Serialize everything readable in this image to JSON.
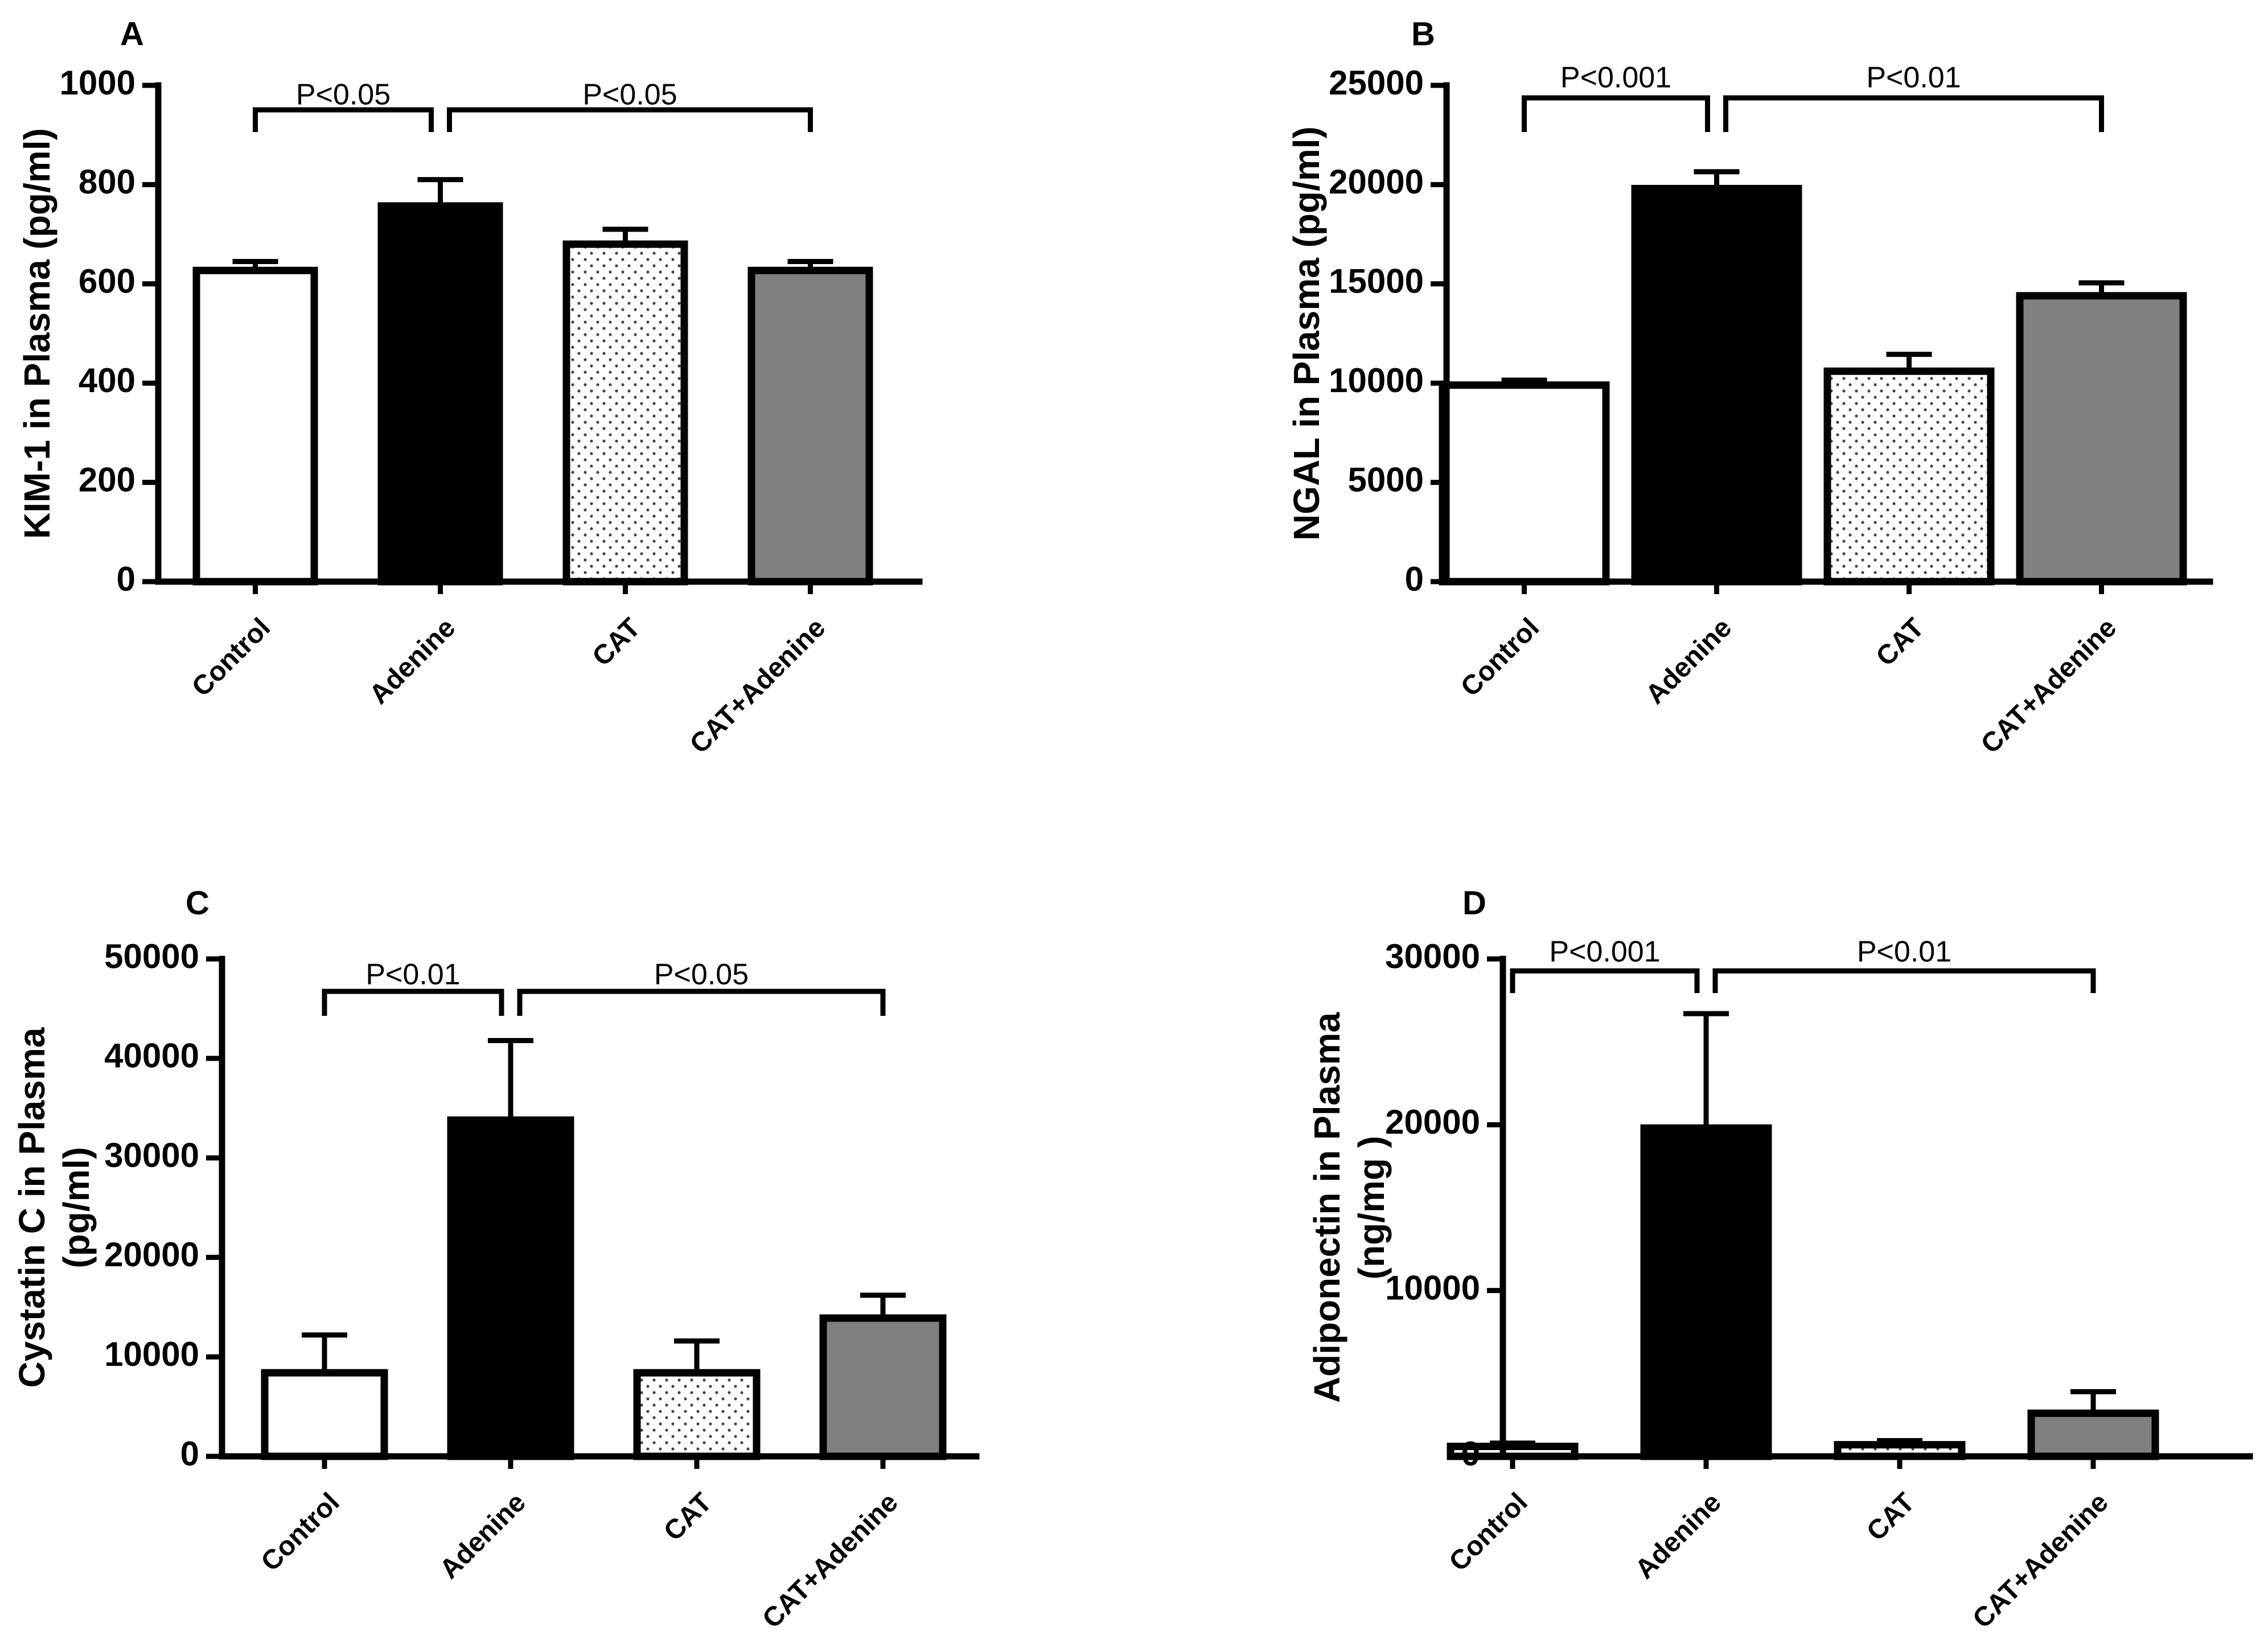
{
  "chart_data": [
    {
      "id": "A",
      "type": "bar",
      "panel_label": "A",
      "ylabel": [
        "KIM-1 in Plasma (pg/ml)"
      ],
      "categories": [
        "Control",
        "Adenine",
        "CAT",
        "CAT+Adenine"
      ],
      "values": [
        627,
        757,
        680,
        627
      ],
      "errors": [
        18,
        53,
        30,
        18
      ],
      "fills": [
        "white",
        "black",
        "dots",
        "gray"
      ],
      "ylim": [
        0,
        1000
      ],
      "yticks": [
        0,
        200,
        400,
        600,
        800,
        1000
      ],
      "comparisons": [
        {
          "from": 0,
          "to": 1,
          "label": "P<0.05"
        },
        {
          "from": 1,
          "to": 3,
          "label": "P<0.05"
        }
      ]
    },
    {
      "id": "B",
      "type": "bar",
      "panel_label": "B",
      "ylabel": [
        "NGAL in Plasma (pg/ml)"
      ],
      "categories": [
        "Control",
        "Adenine",
        "CAT",
        "CAT+Adenine"
      ],
      "values": [
        9900,
        19800,
        10600,
        14400
      ],
      "errors": [
        250,
        850,
        850,
        650
      ],
      "fills": [
        "white",
        "black",
        "dots",
        "gray"
      ],
      "ylim": [
        0,
        25000
      ],
      "yticks": [
        0,
        5000,
        10000,
        15000,
        20000,
        25000
      ],
      "comparisons": [
        {
          "from": 0,
          "to": 1,
          "label": "P<0.001"
        },
        {
          "from": 1,
          "to": 3,
          "label": "P<0.01"
        }
      ]
    },
    {
      "id": "C",
      "type": "bar",
      "panel_label": "C",
      "ylabel": [
        "Cystatin C in Plasma",
        "(pg/ml)"
      ],
      "categories": [
        "Control",
        "Adenine",
        "CAT",
        "CAT+Adenine"
      ],
      "values": [
        8400,
        33800,
        8400,
        13900
      ],
      "errors": [
        3800,
        8000,
        3200,
        2300
      ],
      "fills": [
        "white",
        "black",
        "dots",
        "gray"
      ],
      "ylim": [
        0,
        50000
      ],
      "yticks": [
        0,
        10000,
        20000,
        30000,
        40000,
        50000
      ],
      "comparisons": [
        {
          "from": 0,
          "to": 1,
          "label": "P<0.01"
        },
        {
          "from": 1,
          "to": 3,
          "label": "P<0.05"
        }
      ]
    },
    {
      "id": "D",
      "type": "bar",
      "panel_label": "D",
      "ylabel": [
        "Adiponectin in Plasma",
        "(ng/mg )"
      ],
      "categories": [
        "Control",
        "Adenine",
        "CAT",
        "CAT+Adenine"
      ],
      "values": [
        600,
        19800,
        700,
        2600
      ],
      "errors": [
        200,
        6900,
        250,
        1300
      ],
      "fills": [
        "white",
        "black",
        "dots",
        "gray"
      ],
      "ylim": [
        0,
        30000
      ],
      "yticks": [
        0,
        10000,
        20000,
        30000
      ],
      "comparisons": [
        {
          "from": 0,
          "to": 1,
          "label": "P<0.001"
        },
        {
          "from": 1,
          "to": 3,
          "label": "P<0.01"
        }
      ]
    }
  ],
  "colors": {
    "white": "#ffffff",
    "black": "#000000",
    "gray": "#808080",
    "dots_background": "#ffffff",
    "dots_color": "#444444"
  }
}
